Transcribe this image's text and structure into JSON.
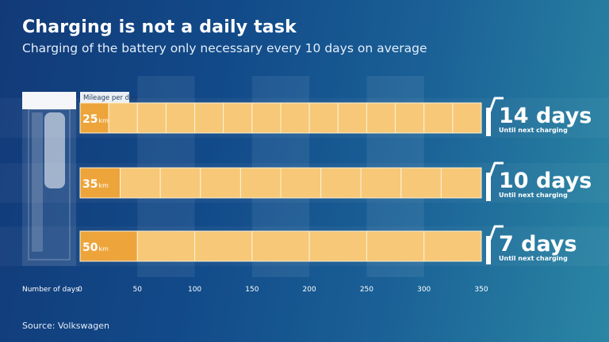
{
  "header": {
    "title": "Charging is not a daily task",
    "subtitle": "Charging of the battery only necessary every 10 days on average"
  },
  "source": "Source: Volkswagen",
  "chart_data": {
    "type": "bar",
    "title": "Charging is not a daily task",
    "subtitle": "Charging of the battery only necessary every 10 days on average",
    "xlabel": "Number of days",
    "series_label": "Mileage per day",
    "xlim": [
      0,
      350
    ],
    "ticks": [
      0,
      50,
      100,
      150,
      200,
      250,
      300,
      350
    ],
    "unit": "km",
    "rows": [
      {
        "daily": "25",
        "unit": "km",
        "segments": 14,
        "total_km": 350,
        "days": "14 days",
        "days_value": 14,
        "note": "Until next charging"
      },
      {
        "daily": "35",
        "unit": "km",
        "segments": 10,
        "total_km": 350,
        "days": "10 days",
        "days_value": 10,
        "note": "Until next charging"
      },
      {
        "daily": "50",
        "unit": "km",
        "segments": 7,
        "total_km": 350,
        "days": "7 days",
        "days_value": 7,
        "note": "Until next charging"
      }
    ]
  },
  "colors": {
    "bar_fill": "#f7c877",
    "first_segment": "#eda43a",
    "bar_border": "#fff1d3",
    "band": "#ffffff"
  }
}
